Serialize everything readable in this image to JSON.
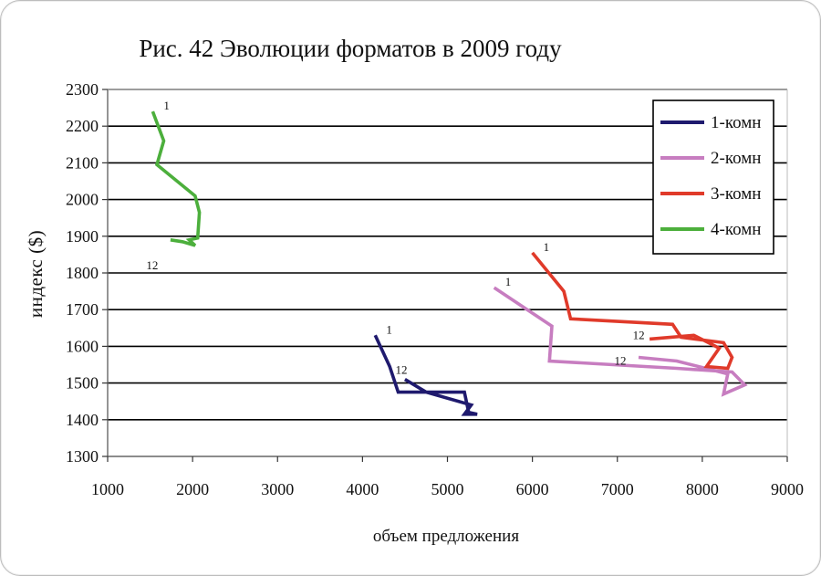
{
  "chart_data": {
    "type": "line",
    "title": "Рис. 42 Эволюции форматов в 2009 году",
    "xlabel": "объем предложения",
    "ylabel": "индекс ($)",
    "xlim": [
      1000,
      9000
    ],
    "ylim": [
      1300,
      2300
    ],
    "x_ticks": [
      1000,
      2000,
      3000,
      4000,
      5000,
      6000,
      7000,
      8000,
      9000
    ],
    "y_ticks": [
      1300,
      1400,
      1500,
      1600,
      1700,
      1800,
      1900,
      2000,
      2100,
      2200,
      2300
    ],
    "grid": "horizontal",
    "legend_position": "top-right",
    "series": [
      {
        "name": "1-комн",
        "color": "#1f1a6e",
        "start_label": "1",
        "end_label": "12",
        "points": [
          [
            4150,
            1630
          ],
          [
            4320,
            1545
          ],
          [
            4420,
            1475
          ],
          [
            5200,
            1475
          ],
          [
            5250,
            1420
          ],
          [
            5350,
            1415
          ],
          [
            5200,
            1415
          ],
          [
            5280,
            1440
          ],
          [
            4750,
            1475
          ],
          [
            4500,
            1510
          ]
        ]
      },
      {
        "name": "2-комн",
        "color": "#c77dc0",
        "start_label": "1",
        "end_label": "12",
        "points": [
          [
            5550,
            1760
          ],
          [
            6230,
            1655
          ],
          [
            6200,
            1560
          ],
          [
            7700,
            1540
          ],
          [
            8350,
            1530
          ],
          [
            8500,
            1495
          ],
          [
            8250,
            1470
          ],
          [
            8300,
            1525
          ],
          [
            7700,
            1560
          ],
          [
            7250,
            1570
          ]
        ]
      },
      {
        "name": "3-комн",
        "color": "#e03a2a",
        "start_label": "1",
        "end_label": "12",
        "points": [
          [
            6000,
            1855
          ],
          [
            6370,
            1750
          ],
          [
            6450,
            1675
          ],
          [
            7650,
            1660
          ],
          [
            7750,
            1625
          ],
          [
            8250,
            1610
          ],
          [
            8350,
            1570
          ],
          [
            8300,
            1540
          ],
          [
            8050,
            1545
          ],
          [
            8200,
            1595
          ],
          [
            7900,
            1630
          ],
          [
            7380,
            1620
          ]
        ]
      },
      {
        "name": "4-комн",
        "color": "#4caf3c",
        "start_label": "1",
        "end_label": "12",
        "points": [
          [
            1530,
            2240
          ],
          [
            1660,
            2160
          ],
          [
            1580,
            2095
          ],
          [
            2030,
            2010
          ],
          [
            2080,
            1965
          ],
          [
            2060,
            1895
          ],
          [
            1960,
            1890
          ],
          [
            2030,
            1875
          ],
          [
            1880,
            1885
          ],
          [
            1740,
            1890
          ]
        ]
      }
    ]
  }
}
